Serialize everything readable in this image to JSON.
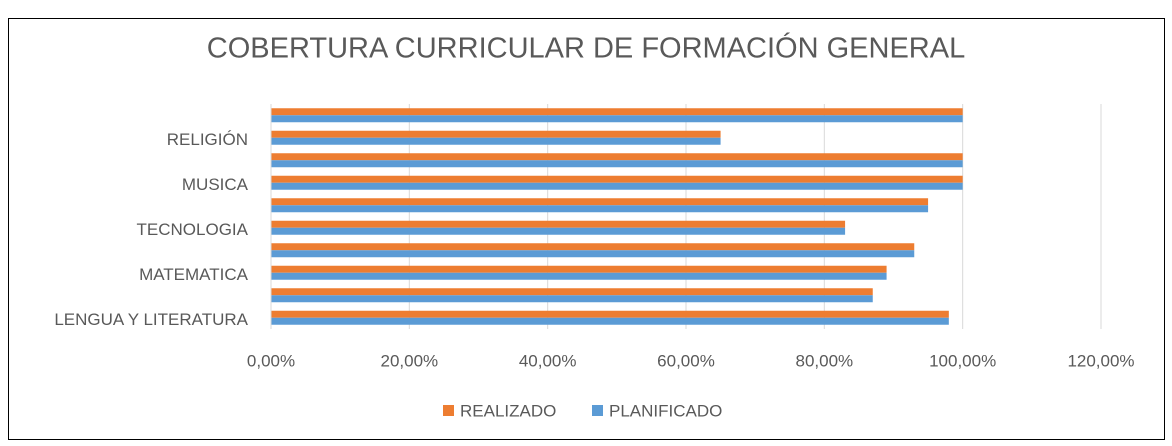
{
  "chart_data": {
    "type": "hbar",
    "title": "COBERTURA CURRICULAR DE FORMACIÓN GENERAL",
    "categories": [
      "LENGUA Y LITERATURA",
      null,
      "MATEMATICA",
      null,
      "TECNOLOGIA",
      null,
      "MUSICA",
      null,
      "RELIGIÓN",
      null
    ],
    "series": [
      {
        "name": "REALIZADO",
        "color": "#ed7d31",
        "values": [
          98,
          87,
          89,
          93,
          83,
          95,
          100,
          100,
          65,
          100
        ]
      },
      {
        "name": "PLANIFICADO",
        "color": "#5b9bd5",
        "values": [
          98,
          87,
          89,
          93,
          83,
          95,
          100,
          100,
          65,
          100
        ]
      }
    ],
    "xlim": [
      0,
      120
    ],
    "xticks": [
      {
        "value": 0,
        "label": "0,00%"
      },
      {
        "value": 20,
        "label": "20,00%"
      },
      {
        "value": 40,
        "label": "40,00%"
      },
      {
        "value": 60,
        "label": "60,00%"
      },
      {
        "value": 80,
        "label": "80,00%"
      },
      {
        "value": 100,
        "label": "100,00%"
      },
      {
        "value": 120,
        "label": "120,00%"
      }
    ],
    "grid": true,
    "legend": "bottom"
  }
}
